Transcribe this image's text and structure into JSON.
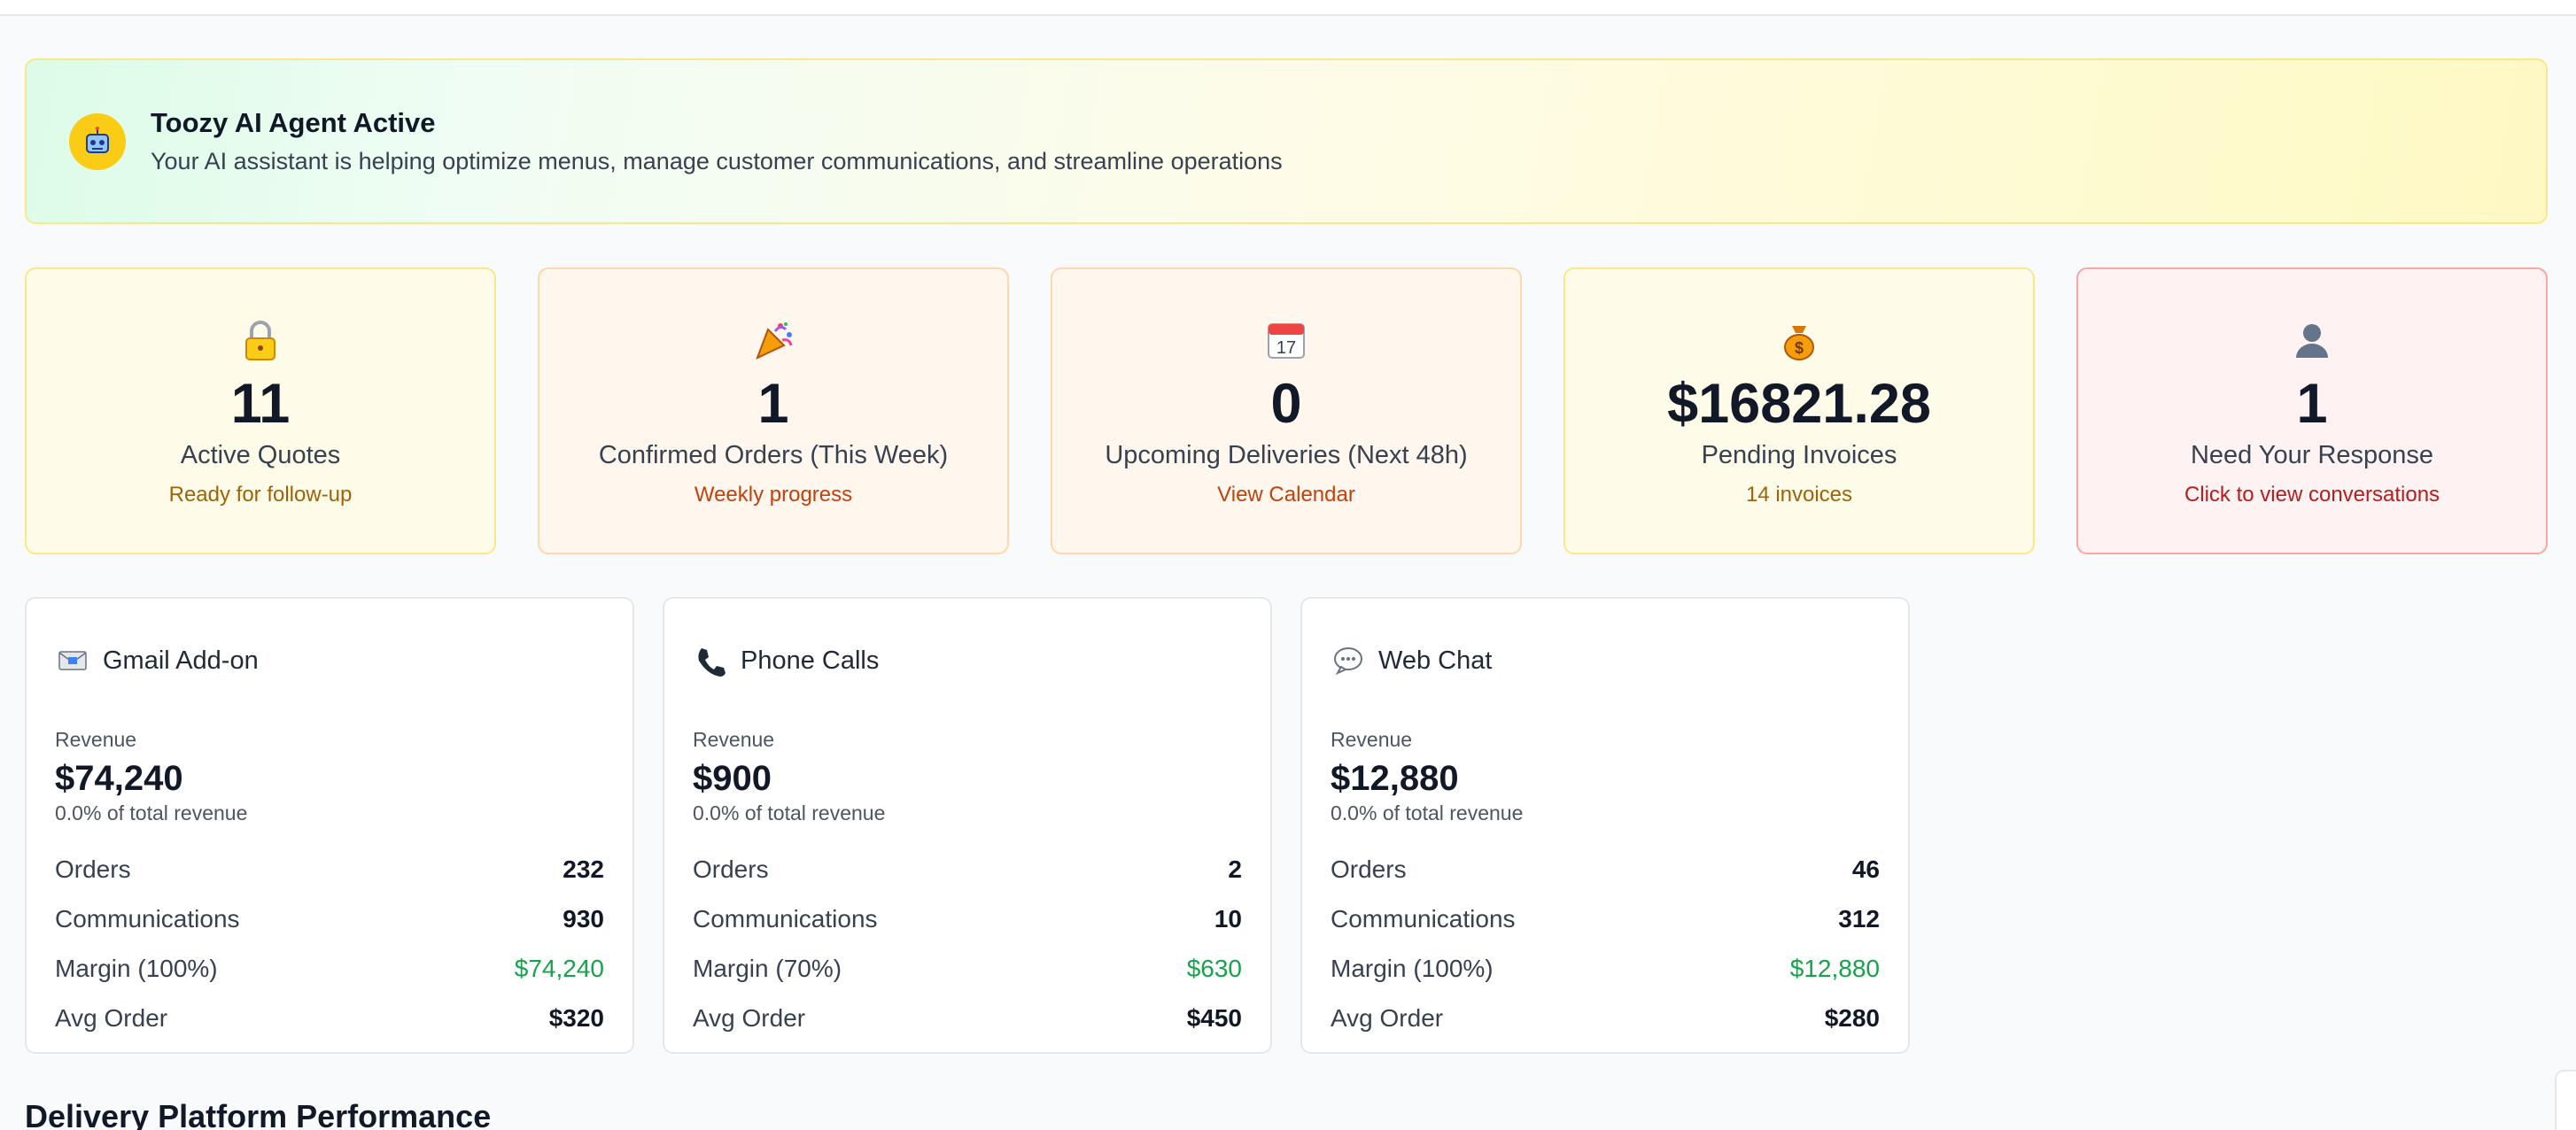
{
  "banner": {
    "title": "Toozy AI Agent Active",
    "subtitle": "Your AI assistant is helping optimize menus, manage customer communications, and streamline operations",
    "icon": "robot-icon"
  },
  "stats": [
    {
      "icon": "lock-icon",
      "value": "11",
      "label": "Active Quotes",
      "sub": "Ready for follow-up"
    },
    {
      "icon": "party-popper-icon",
      "value": "1",
      "label": "Confirmed Orders (This Week)",
      "sub": "Weekly progress"
    },
    {
      "icon": "calendar-icon",
      "value": "0",
      "label": "Upcoming Deliveries (Next 48h)",
      "sub": "View Calendar"
    },
    {
      "icon": "money-bag-icon",
      "value": "$16821.28",
      "label": "Pending Invoices",
      "sub": "14 invoices"
    },
    {
      "icon": "user-icon",
      "value": "1",
      "label": "Need Your Response",
      "sub": "Click to view conversations"
    }
  ],
  "channels": [
    {
      "icon": "envelope-icon",
      "title": "Gmail Add-on",
      "revenue_label": "Revenue",
      "revenue": "$74,240",
      "share": "0.0% of total revenue",
      "rows": {
        "orders_label": "Orders",
        "orders": "232",
        "comms_label": "Communications",
        "comms": "930",
        "margin_label": "Margin (100%)",
        "margin": "$74,240",
        "avg_label": "Avg Order",
        "avg": "$320"
      }
    },
    {
      "icon": "phone-icon",
      "title": "Phone Calls",
      "revenue_label": "Revenue",
      "revenue": "$900",
      "share": "0.0% of total revenue",
      "rows": {
        "orders_label": "Orders",
        "orders": "2",
        "comms_label": "Communications",
        "comms": "10",
        "margin_label": "Margin (70%)",
        "margin": "$630",
        "avg_label": "Avg Order",
        "avg": "$450"
      }
    },
    {
      "icon": "speech-bubble-icon",
      "title": "Web Chat",
      "revenue_label": "Revenue",
      "revenue": "$12,880",
      "share": "0.0% of total revenue",
      "rows": {
        "orders_label": "Orders",
        "orders": "46",
        "comms_label": "Communications",
        "comms": "312",
        "margin_label": "Margin (100%)",
        "margin": "$12,880",
        "avg_label": "Avg Order",
        "avg": "$280"
      }
    }
  ],
  "section": {
    "title": "Delivery Platform Performance"
  },
  "colors": {
    "positive": "#16a34a",
    "alert": "#b91c1c",
    "accent_yellow": "#facc15"
  }
}
